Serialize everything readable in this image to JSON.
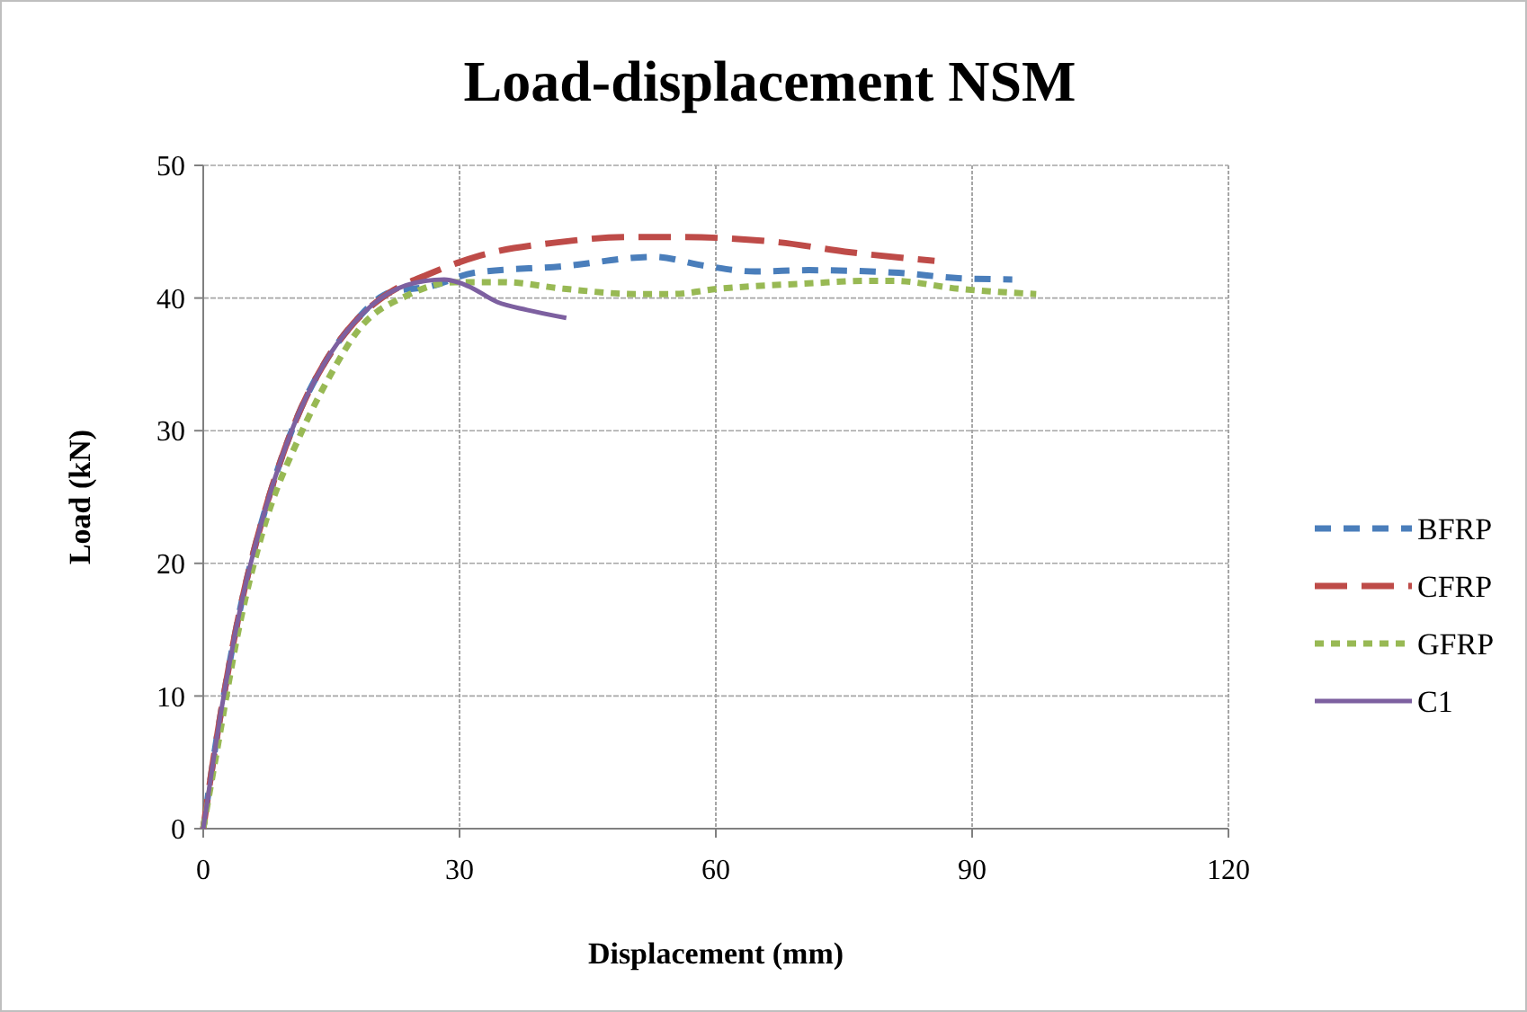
{
  "chart_data": {
    "type": "line",
    "title": "Load-displacement NSM",
    "xlabel": "Displacement (mm)",
    "ylabel": "Load (kN)",
    "xlim": [
      0,
      120
    ],
    "xticks": [
      0,
      30,
      60,
      90,
      120
    ],
    "ylim": [
      0,
      50
    ],
    "yticks": [
      0,
      10,
      20,
      30,
      40,
      50
    ],
    "grid": true,
    "legend": "right",
    "marker": "none",
    "series": [
      {
        "name": "BFRP",
        "color": "#4a7ebb",
        "line_style": "dashed",
        "x": [
          0,
          1.5,
          4.3,
          7.1,
          10.6,
          14.1,
          17.6,
          21.8,
          26.7,
          31.7,
          42.2,
          52.7,
          59,
          64.6,
          70.9,
          81.4,
          88.4,
          94.7
        ],
        "values": [
          0,
          6.5,
          16.5,
          23.7,
          30.4,
          35,
          38.1,
          40.4,
          40.9,
          41.9,
          42.4,
          43.1,
          42.4,
          42,
          42.1,
          41.9,
          41.5,
          41.4
        ]
      },
      {
        "name": "CFRP",
        "color": "#be4b48",
        "line_style": "longdash",
        "x": [
          0,
          1.5,
          4.3,
          7.1,
          10.6,
          14.1,
          17.6,
          21.8,
          26.4,
          32.4,
          41.5,
          49.9,
          55.5,
          67.4,
          75.1,
          85.6
        ],
        "values": [
          0,
          6.5,
          16.5,
          23.7,
          30.4,
          35,
          38.1,
          40.4,
          41.8,
          43.2,
          44.2,
          44.6,
          44.6,
          44.2,
          43.5,
          42.8
        ]
      },
      {
        "name": "GFRP",
        "color": "#98b954",
        "line_style": "dotted",
        "x": [
          0,
          1.5,
          4.3,
          7.1,
          11.3,
          14.8,
          18.3,
          23.9,
          29.5,
          35.1,
          42.2,
          50.6,
          54.8,
          60.4,
          70.9,
          77.9,
          80.7,
          88.4,
          97.5
        ],
        "values": [
          0,
          5.5,
          15.5,
          22.7,
          29.6,
          34.1,
          37.7,
          40.2,
          41.2,
          41.2,
          40.7,
          40.3,
          40.3,
          40.7,
          41.1,
          41.3,
          41.3,
          40.7,
          40.3
        ]
      },
      {
        "name": "C1",
        "color": "#7d60a0",
        "line_style": "solid",
        "x": [
          0,
          1.5,
          4.3,
          7.1,
          10.6,
          14.1,
          17.6,
          21.8,
          26,
          28.2,
          31,
          34.4,
          37.9,
          42.5
        ],
        "values": [
          0,
          6.5,
          16.5,
          23.7,
          30.4,
          35,
          38.1,
          40.4,
          41.3,
          41.4,
          40.9,
          39.7,
          39.1,
          38.5
        ]
      }
    ]
  }
}
